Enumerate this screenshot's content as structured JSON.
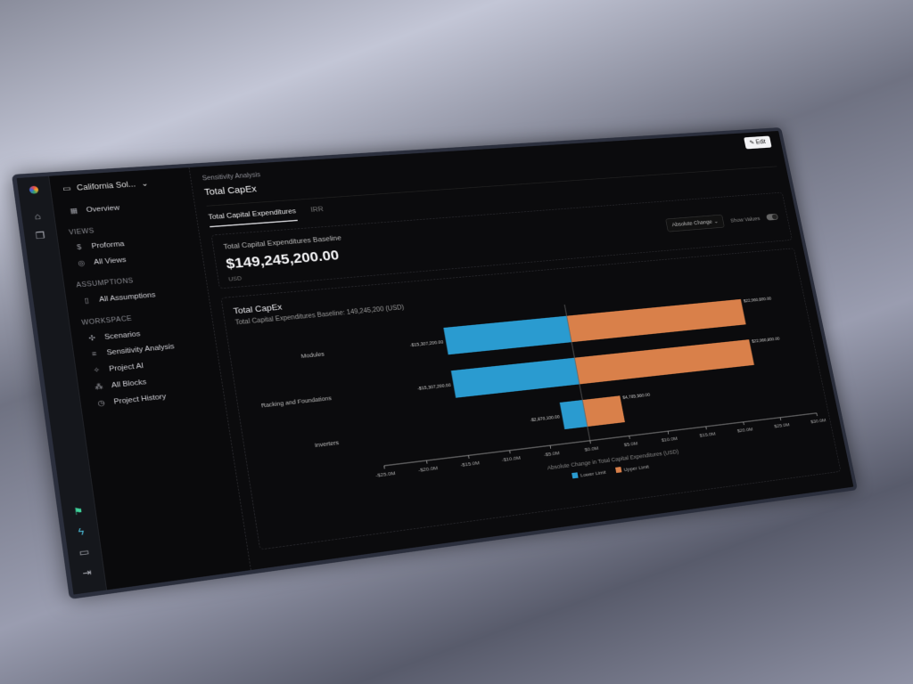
{
  "sidebar": {
    "project": "California Sol...",
    "overview": "Overview",
    "views_header": "VIEWS",
    "proforma": "Proforma",
    "all_views": "All Views",
    "assumptions_header": "ASSUMPTIONS",
    "all_assumptions": "All Assumptions",
    "workspace_header": "WORKSPACE",
    "scenarios": "Scenarios",
    "sensitivity": "Sensitivity Analysis",
    "project_ai": "Project AI",
    "all_blocks": "All Blocks",
    "history": "Project History"
  },
  "header": {
    "breadcrumb": "Sensitivity Analysis",
    "title": "Total CapEx",
    "edit_label": "Edit"
  },
  "tabs": [
    "Total Capital Expenditures",
    "IRR"
  ],
  "baseline": {
    "title": "Total Capital Expenditures Baseline",
    "value": "$149,245,200.00",
    "unit": "USD"
  },
  "controls": {
    "mode": "Absolute Change",
    "show_values": "Show Values",
    "show_values_on": true
  },
  "colors": {
    "lower": "#2a9bd0",
    "upper": "#d9804a",
    "accent_flag": "#3fd19a"
  },
  "chart_data": {
    "type": "bar",
    "orientation": "horizontal-diverging",
    "title": "Total CapEx",
    "subtitle": "Total Capital Expenditures Baseline: 149,245,200 (USD)",
    "xlabel": "Absolute Change in Total Capital Expenditures (USD)",
    "xlim": [
      -25000000,
      30000000
    ],
    "xticks": [
      "-$25.0M",
      "-$20.0M",
      "-$15.0M",
      "-$10.0M",
      "-$5.0M",
      "$0.0M",
      "$5.0M",
      "$10.0M",
      "$15.0M",
      "$20.0M",
      "$25.0M",
      "$30.0M"
    ],
    "categories": [
      "Modules",
      "Racking and Foundations",
      "Inverters"
    ],
    "series": [
      {
        "name": "Lower Limit",
        "values": [
          -15307200,
          -15307200,
          -2870100
        ],
        "labels": [
          "-$15,307,200.00",
          "-$15,307,200.00",
          "-$2,870,100.00"
        ]
      },
      {
        "name": "Upper Limit",
        "values": [
          22960800,
          22960800,
          4785560
        ],
        "labels": [
          "$22,960,800.00",
          "$22,960,800.00",
          "$4,785,560.00"
        ]
      }
    ],
    "legend": "bottom-center"
  }
}
